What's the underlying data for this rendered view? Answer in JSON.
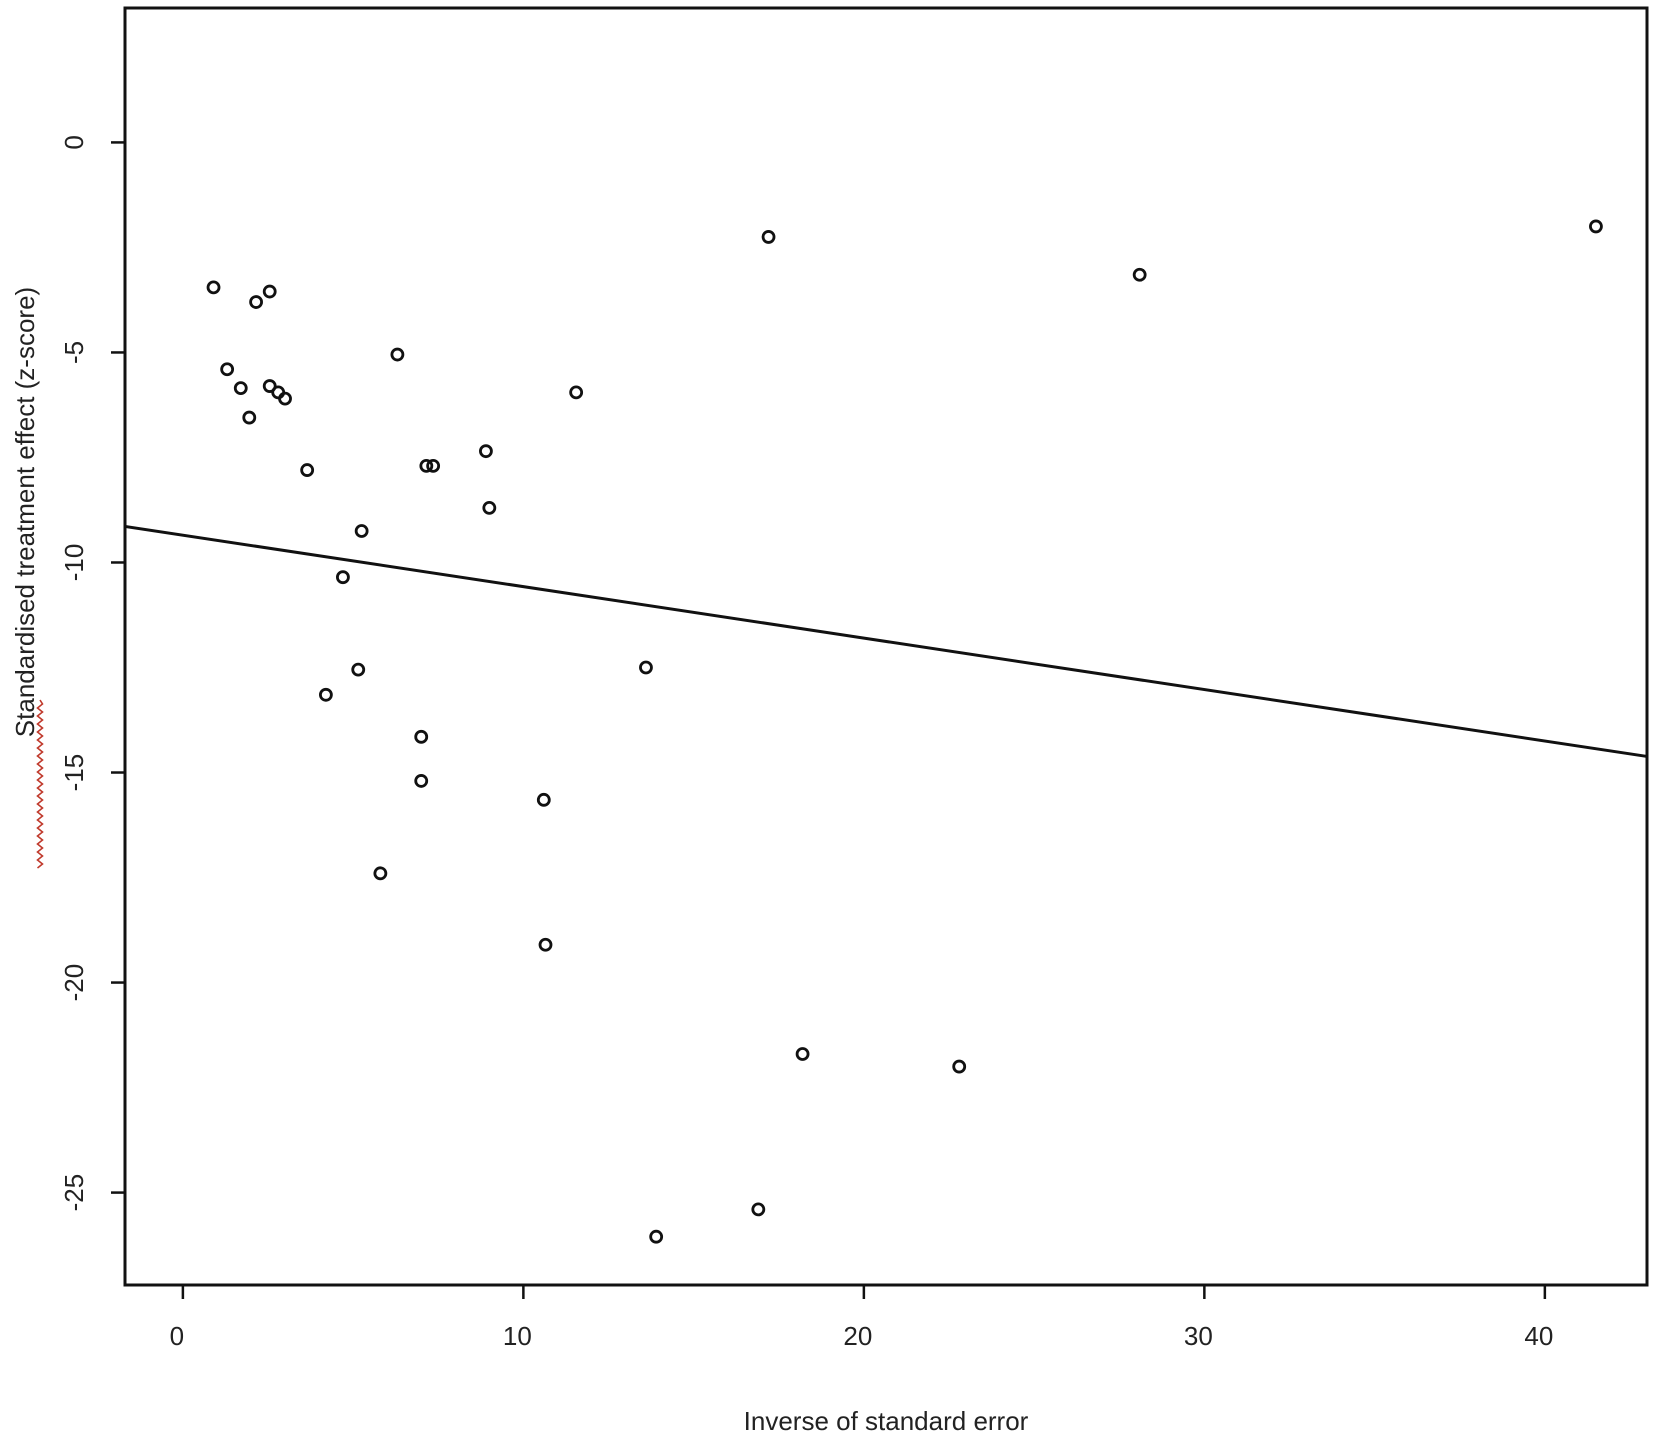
{
  "chart_data": {
    "type": "scatter",
    "title": "",
    "xlabel": "Inverse of standard error",
    "ylabel": "Standardised treatment effect (z-score)",
    "xlim": [
      -1.7,
      43
    ],
    "ylim": [
      -27.2,
      3.2
    ],
    "x_ticks": [
      0,
      10,
      20,
      30,
      40
    ],
    "y_ticks": [
      0,
      -5,
      -10,
      -15,
      -20,
      -25
    ],
    "x_tick_labels": [
      "0",
      "10",
      "20",
      "30",
      "40"
    ],
    "y_tick_labels": [
      "0",
      "-5",
      "-10",
      "-15",
      "-20",
      "-25"
    ],
    "grid": false,
    "legend": "none",
    "point_style": "open-circle",
    "points": [
      {
        "x": 0.9,
        "y": -3.45
      },
      {
        "x": 1.3,
        "y": -5.4
      },
      {
        "x": 1.7,
        "y": -5.85
      },
      {
        "x": 1.95,
        "y": -6.55
      },
      {
        "x": 2.15,
        "y": -3.8
      },
      {
        "x": 2.55,
        "y": -3.55
      },
      {
        "x": 2.55,
        "y": -5.8
      },
      {
        "x": 2.8,
        "y": -5.95
      },
      {
        "x": 3.0,
        "y": -6.1
      },
      {
        "x": 3.65,
        "y": -7.8
      },
      {
        "x": 4.2,
        "y": -13.15
      },
      {
        "x": 4.7,
        "y": -10.35
      },
      {
        "x": 5.15,
        "y": -12.55
      },
      {
        "x": 5.25,
        "y": -9.25
      },
      {
        "x": 5.8,
        "y": -17.4
      },
      {
        "x": 6.3,
        "y": -5.05
      },
      {
        "x": 7.0,
        "y": -14.15
      },
      {
        "x": 7.0,
        "y": -15.2
      },
      {
        "x": 7.15,
        "y": -7.7
      },
      {
        "x": 7.35,
        "y": -7.7
      },
      {
        "x": 8.9,
        "y": -7.35
      },
      {
        "x": 9.0,
        "y": -8.7
      },
      {
        "x": 10.6,
        "y": -15.65
      },
      {
        "x": 10.65,
        "y": -19.1
      },
      {
        "x": 11.55,
        "y": -5.95
      },
      {
        "x": 13.6,
        "y": -12.5
      },
      {
        "x": 13.9,
        "y": -26.05
      },
      {
        "x": 16.9,
        "y": -25.4
      },
      {
        "x": 17.2,
        "y": -2.25
      },
      {
        "x": 18.2,
        "y": -21.7
      },
      {
        "x": 22.8,
        "y": -22.0
      },
      {
        "x": 28.1,
        "y": -3.15
      },
      {
        "x": 41.5,
        "y": -2.0
      }
    ],
    "fit_line": {
      "intercept": -9.35,
      "slope": -0.1225
    }
  }
}
